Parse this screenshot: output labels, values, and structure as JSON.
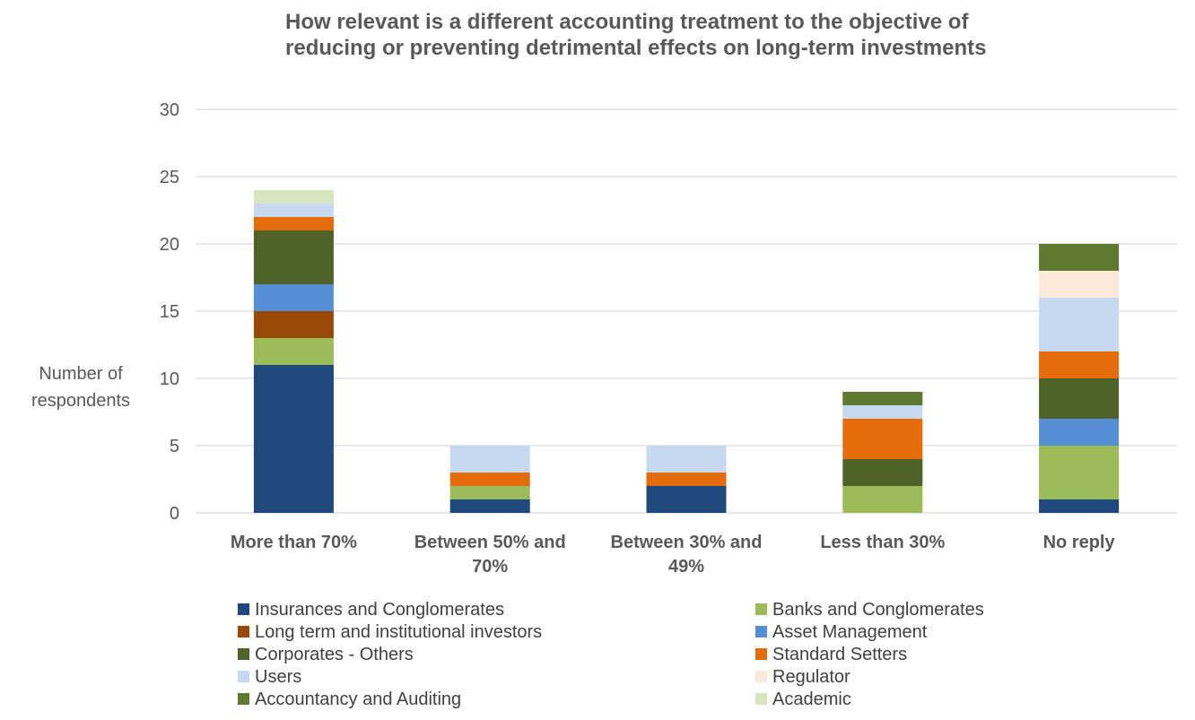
{
  "chart_data": {
    "type": "bar",
    "stacked": true,
    "title": "How relevant is a different accounting treatment to the objective of reducing or preventing detrimental effects on long-term investments",
    "ylabel": "Number of respondents",
    "xlabel": "",
    "ylim": [
      0,
      30
    ],
    "yticks": [
      0,
      5,
      10,
      15,
      20,
      25,
      30
    ],
    "grid": true,
    "legend_position": "bottom",
    "categories": [
      "More than 70%",
      "Between 50% and 70%",
      "Between 30% and 49%",
      "Less than 30%",
      "No reply"
    ],
    "series": [
      {
        "name": "Insurances and Conglomerates",
        "color": "#1f497d",
        "values": [
          11,
          1,
          2,
          0,
          1
        ]
      },
      {
        "name": "Banks and Conglomerates",
        "color": "#9bbb59",
        "values": [
          2,
          1,
          0,
          2,
          4
        ]
      },
      {
        "name": "Long term and institutional investors",
        "color": "#984807",
        "values": [
          2,
          0,
          0,
          0,
          0
        ]
      },
      {
        "name": "Asset Management",
        "color": "#558ed5",
        "values": [
          2,
          0,
          0,
          0,
          2
        ]
      },
      {
        "name": "Corporates - Others",
        "color": "#4f6228",
        "values": [
          4,
          0,
          0,
          2,
          3
        ]
      },
      {
        "name": "Standard Setters",
        "color": "#e46c0a",
        "values": [
          1,
          1,
          1,
          3,
          2
        ]
      },
      {
        "name": "Users",
        "color": "#c6d9f1",
        "values": [
          1,
          2,
          2,
          1,
          4
        ]
      },
      {
        "name": "Regulator",
        "color": "#fde9d9",
        "values": [
          0,
          0,
          0,
          0,
          2
        ]
      },
      {
        "name": "Accountancy and Auditing",
        "color": "#5e7a30",
        "values": [
          0,
          0,
          0,
          1,
          2
        ]
      },
      {
        "name": "Academic",
        "color": "#d7e4bd",
        "values": [
          1,
          0,
          0,
          0,
          0
        ]
      }
    ]
  }
}
